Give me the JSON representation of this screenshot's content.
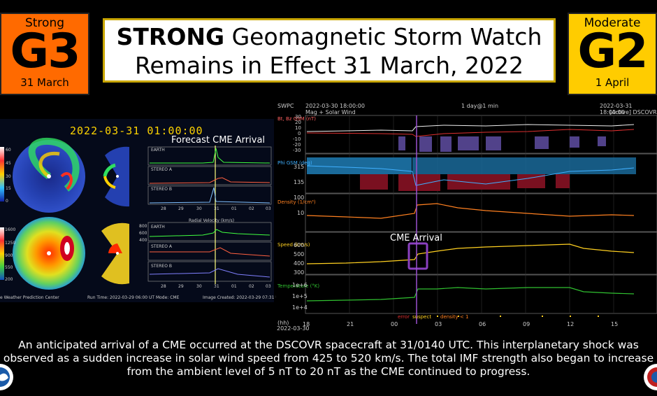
{
  "g3": {
    "level": "Strong",
    "scale": "G3",
    "date": "31 March",
    "color": "#ff6a00"
  },
  "g2": {
    "level": "Moderate",
    "scale": "G2",
    "date": "1 April",
    "color": "#ffcc00"
  },
  "title": {
    "bold": "STRONG",
    "line1_rest": " Geomagnetic Storm Watch",
    "line2": "Remains in Effect 31 March, 2022"
  },
  "enlil": {
    "timestamp": "2022-03-31  01:00:00",
    "forecast_label": "Forecast CME Arrival",
    "density_scale": [
      "60",
      "45",
      "30",
      "15",
      "0"
    ],
    "velocity_scale": [
      "1600",
      "1250",
      "900",
      "550",
      "200"
    ],
    "panels": [
      "EARTH",
      "STEREO A",
      "STEREO B"
    ],
    "x_ticks": [
      "28",
      "29",
      "30",
      "31",
      "01",
      "02",
      "03"
    ],
    "radial_velocity_title": "Radial Velocity (km/s)",
    "velocity_ticks": [
      "800",
      "600",
      "400"
    ],
    "footer_left": "e Weather Prediction Center",
    "run_time": "Run Time: 2022-03-29 06:00 UT   Mode: CME",
    "image_created": "Image Created: 2022-03-29 07:31 UT"
  },
  "swpc": {
    "org": "SWPC",
    "start": "2022-03-30 18:00:00",
    "subtitle": "Mag + Solar Wind",
    "span": "1 day@1 min",
    "end": "2022-03-31 18:00:00",
    "active": "[Active] DSCOVR",
    "panel_labels": [
      "Bt, Bz GSM (nT)",
      "Phi GSM (deg)",
      "Density (1/cm³)",
      "Speed (km/s)",
      "Temperature (°K)"
    ],
    "bz_ticks": [
      "30",
      "20",
      "10",
      "0",
      "-10",
      "-20",
      "-30"
    ],
    "phi_ticks": [
      "315",
      "135"
    ],
    "density_ticks": [
      "100",
      "10"
    ],
    "speed_ticks": [
      "600",
      "500",
      "400",
      "300"
    ],
    "temp_ticks": [
      "1e+6",
      "1e+5",
      "1e+4"
    ],
    "cme_label": "CME Arrival",
    "legend_error": "error",
    "legend_suspect": "suspect",
    "legend_density": "density < 1",
    "x_ticks": [
      "18",
      "21",
      "00",
      "03",
      "06",
      "09",
      "12",
      "15"
    ],
    "x_unit": "(hh)",
    "x_date": "2022-03-30"
  },
  "caption": "An anticipated arrival of a CME occurred at the DSCOVR spacecraft at 31/0140 UTC. This interplanetary shock was observed as a sudden increase in solar wind speed from 425 to 520 km/s. The total IMF strength also began to increase from the ambient level of 5 nT to 20 nT as the CME continued to progress."
}
